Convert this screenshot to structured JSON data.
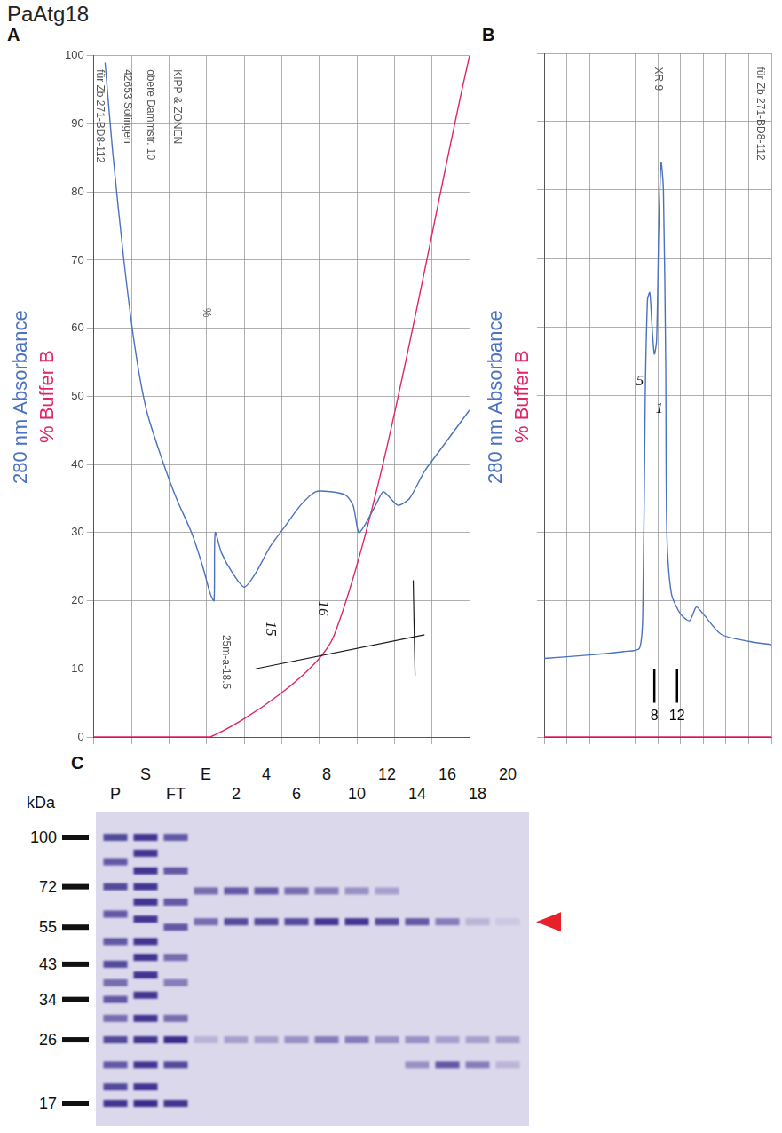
{
  "title": "PaAtg18",
  "chart_data": [
    {
      "panel": "A",
      "type": "line",
      "xlim": [
        0,
        100
      ],
      "xticks": [
        0,
        10,
        20,
        30,
        40,
        50,
        60,
        70,
        80,
        90,
        100
      ],
      "ylim": [
        0,
        100
      ],
      "yticks": [
        0,
        10,
        20,
        30,
        40,
        50,
        60,
        70,
        80,
        90,
        100
      ],
      "grid": true,
      "tick_labels": "y",
      "legend": "left",
      "series": [
        {
          "name": "280 nm Absorbance",
          "color": "#4a72c0",
          "x": [
            3,
            5,
            8,
            11,
            14,
            18,
            22,
            26,
            29,
            31,
            32,
            32.3,
            34,
            37,
            40,
            43,
            47,
            51,
            55,
            59,
            63,
            67,
            69,
            70.5,
            72,
            75,
            77,
            79,
            81,
            84,
            88,
            92,
            96,
            100
          ],
          "values": [
            99,
            86,
            70,
            57,
            48,
            41,
            35,
            30,
            25,
            21,
            20,
            30,
            27,
            24,
            22,
            24,
            28,
            31,
            34,
            36,
            36,
            35.5,
            34,
            30,
            31,
            34,
            36,
            35,
            34,
            35,
            39,
            42,
            45,
            48
          ]
        },
        {
          "name": "% Buffer B",
          "color": "#e0246a",
          "x": [
            0,
            31,
            64,
            100
          ],
          "values": [
            0,
            0,
            15,
            100
          ]
        }
      ],
      "annotations": [
        "für Zb 271-BD8-112",
        "42653 Solingen",
        "obere Dammstr. 10",
        "KIPP & ZONEN",
        "%",
        "25m-a-18.5",
        "15",
        "16"
      ]
    },
    {
      "panel": "B",
      "type": "line",
      "xlim": [
        0,
        100
      ],
      "xticks": [
        0,
        10,
        20,
        30,
        40,
        50,
        60,
        70,
        80,
        90,
        100
      ],
      "ylim": [
        0,
        100
      ],
      "yticks": [
        0,
        10,
        20,
        30,
        40,
        50,
        60,
        70,
        80,
        90,
        100
      ],
      "grid": true,
      "tick_labels": false,
      "legend": "left",
      "series": [
        {
          "name": "280 nm Absorbance",
          "color": "#4a72c0",
          "x": [
            0,
            20,
            35,
            42,
            43.5,
            44.5,
            45.5,
            46.5,
            47.5,
            48.5,
            49.5,
            50.5,
            51.5,
            52.5,
            53.5,
            54,
            56,
            60,
            64,
            67,
            70,
            78,
            90,
            100
          ],
          "values": [
            11.5,
            12,
            12.5,
            13,
            20,
            50,
            64,
            65,
            60,
            56,
            58,
            75,
            84,
            80,
            55,
            30,
            21,
            18,
            17,
            19,
            18,
            15,
            14,
            13.5
          ]
        },
        {
          "name": "% Buffer B",
          "color": "#e0246a",
          "x": [
            0,
            100
          ],
          "values": [
            0,
            0
          ]
        }
      ],
      "fractions": [
        {
          "label": "8",
          "x": 48.5
        },
        {
          "label": "12",
          "x": 58.5
        }
      ],
      "annotations": [
        "XR 9",
        "für Zb 271-BD8-112",
        "5",
        "1"
      ]
    }
  ],
  "gel": {
    "panel": "C",
    "ylabel": "kDa",
    "markers": [
      100,
      72,
      55,
      43,
      34,
      26,
      17
    ],
    "arrow_kDa": 57,
    "color": "#e8202a",
    "lanes": [
      {
        "label": "P",
        "bands": [
          [
            100,
            0.8
          ],
          [
            85,
            0.7
          ],
          [
            72,
            0.8
          ],
          [
            60,
            0.7
          ],
          [
            50,
            0.7
          ],
          [
            43,
            0.8
          ],
          [
            38,
            0.6
          ],
          [
            34,
            0.7
          ],
          [
            30,
            0.6
          ],
          [
            26,
            0.8
          ],
          [
            22,
            0.7
          ],
          [
            19,
            0.8
          ],
          [
            17,
            0.9
          ]
        ]
      },
      {
        "label": "S",
        "bands": [
          [
            100,
            0.9
          ],
          [
            90,
            0.9
          ],
          [
            80,
            0.9
          ],
          [
            72,
            0.9
          ],
          [
            65,
            0.9
          ],
          [
            58,
            0.9
          ],
          [
            50,
            0.9
          ],
          [
            45,
            0.9
          ],
          [
            40,
            0.9
          ],
          [
            35,
            0.9
          ],
          [
            30,
            0.9
          ],
          [
            26,
            0.9
          ],
          [
            22,
            0.9
          ],
          [
            19,
            0.9
          ],
          [
            17,
            0.95
          ]
        ]
      },
      {
        "label": "FT",
        "bands": [
          [
            100,
            0.7
          ],
          [
            80,
            0.7
          ],
          [
            65,
            0.7
          ],
          [
            55,
            0.7
          ],
          [
            45,
            0.6
          ],
          [
            38,
            0.5
          ],
          [
            30,
            0.6
          ],
          [
            26,
            0.95
          ],
          [
            22,
            0.8
          ],
          [
            17,
            0.9
          ]
        ]
      },
      {
        "label": "E",
        "bands": [
          [
            70,
            0.6
          ],
          [
            57,
            0.6
          ],
          [
            26,
            0.2
          ]
        ]
      },
      {
        "label": "2",
        "bands": [
          [
            70,
            0.7
          ],
          [
            57,
            0.8
          ],
          [
            26,
            0.3
          ]
        ]
      },
      {
        "label": "4",
        "bands": [
          [
            70,
            0.7
          ],
          [
            57,
            0.8
          ],
          [
            26,
            0.3
          ]
        ]
      },
      {
        "label": "6",
        "bands": [
          [
            70,
            0.6
          ],
          [
            57,
            0.8
          ],
          [
            26,
            0.4
          ]
        ]
      },
      {
        "label": "8",
        "bands": [
          [
            70,
            0.5
          ],
          [
            57,
            0.9
          ],
          [
            26,
            0.5
          ]
        ]
      },
      {
        "label": "10",
        "bands": [
          [
            70,
            0.4
          ],
          [
            57,
            0.9
          ],
          [
            26,
            0.5
          ]
        ]
      },
      {
        "label": "12",
        "bands": [
          [
            70,
            0.3
          ],
          [
            57,
            0.8
          ],
          [
            26,
            0.4
          ]
        ]
      },
      {
        "label": "14",
        "bands": [
          [
            57,
            0.7
          ],
          [
            26,
            0.4
          ],
          [
            22,
            0.4
          ]
        ]
      },
      {
        "label": "16",
        "bands": [
          [
            57,
            0.5
          ],
          [
            26,
            0.3
          ],
          [
            22,
            0.7
          ]
        ]
      },
      {
        "label": "18",
        "bands": [
          [
            57,
            0.2
          ],
          [
            26,
            0.3
          ],
          [
            22,
            0.5
          ]
        ]
      },
      {
        "label": "20",
        "bands": [
          [
            57,
            0.1
          ],
          [
            26,
            0.3
          ],
          [
            22,
            0.2
          ]
        ]
      }
    ]
  }
}
